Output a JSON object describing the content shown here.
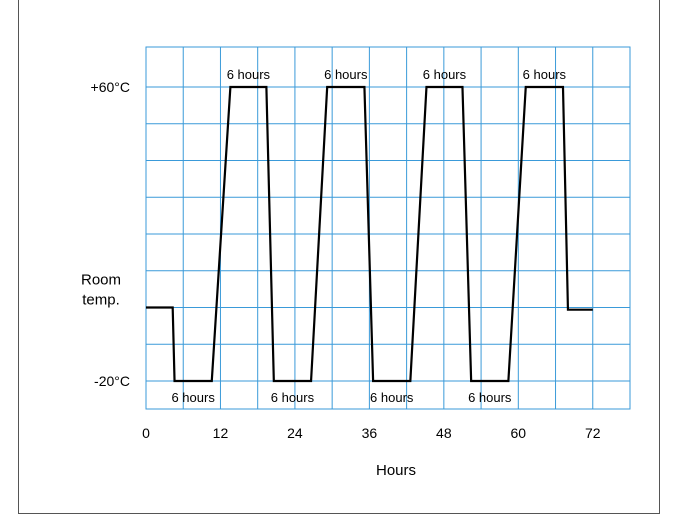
{
  "chart_data": {
    "type": "line",
    "xlabel": "Hours",
    "ylabel": "",
    "xlim": [
      0,
      78
    ],
    "x_ticks": [
      0,
      12,
      24,
      36,
      48,
      60,
      72
    ],
    "y_ticks": [
      {
        "value": 60,
        "label": "+60°C"
      },
      {
        "value": -20,
        "label": "-20°C"
      }
    ],
    "room_temp_label": [
      "Room",
      "temp."
    ],
    "room_temp_value": 0,
    "grid": true,
    "series": [
      {
        "x": [
          0,
          4.3,
          4.6,
          10.6,
          13.6,
          19.4,
          20.6,
          26.6,
          29.2,
          35.2,
          36.6,
          42.6,
          45.2,
          51.0,
          52.4,
          58.4,
          61.2,
          67.2,
          68.0,
          72
        ],
        "y": [
          0,
          0,
          -20,
          -20,
          60,
          60,
          -20,
          -20,
          60,
          60,
          -20,
          -20,
          60,
          60,
          -20,
          -20,
          60,
          60,
          -0.6,
          -0.6
        ]
      }
    ],
    "annotations_top": [
      {
        "x": 16.5,
        "text": "6 hours"
      },
      {
        "x": 32.2,
        "text": "6 hours"
      },
      {
        "x": 48.1,
        "text": "6 hours"
      },
      {
        "x": 64.2,
        "text": "6 hours"
      }
    ],
    "annotations_bottom": [
      {
        "x": 7.6,
        "text": "6 hours"
      },
      {
        "x": 23.6,
        "text": "6 hours"
      },
      {
        "x": 39.6,
        "text": "6 hours"
      },
      {
        "x": 55.4,
        "text": "6 hours"
      }
    ],
    "colors": {
      "grid": "#3a9ad9",
      "line": "#000000"
    }
  }
}
